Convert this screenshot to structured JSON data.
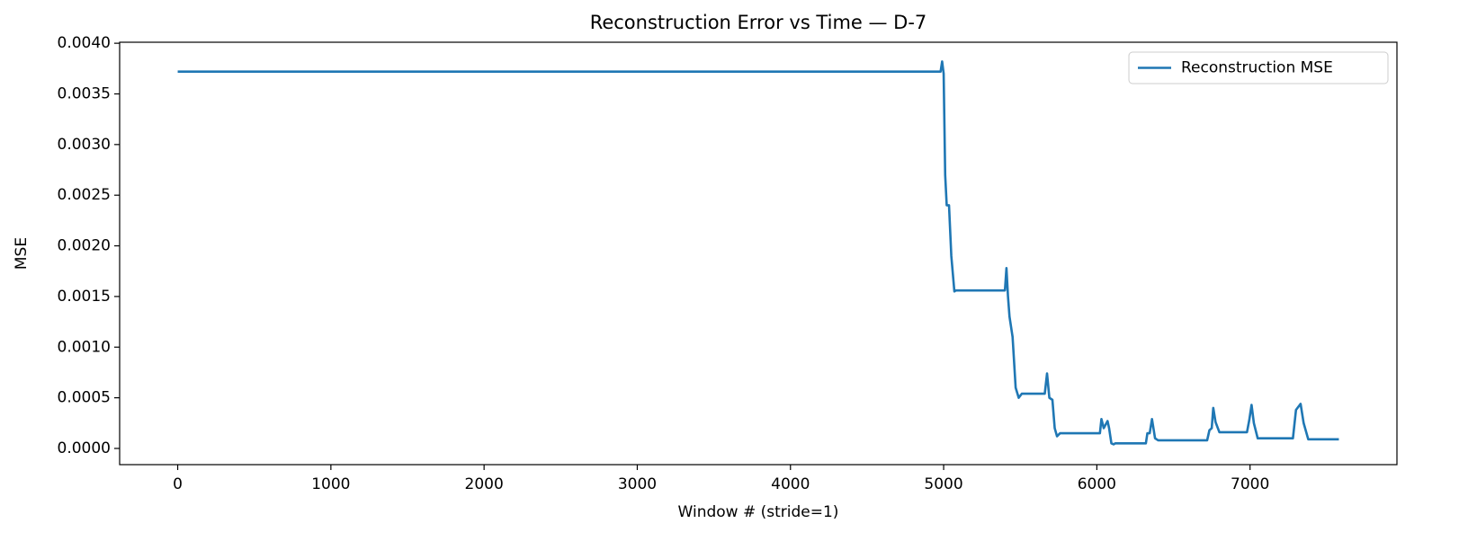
{
  "chart_data": {
    "type": "line",
    "title": "Reconstruction Error vs Time — D-7",
    "x_label": "Window # (stride=1)",
    "y_label": "MSE",
    "x": [
      0,
      4980,
      4990,
      5000,
      5010,
      5020,
      5035,
      5050,
      5070,
      5080,
      5400,
      5410,
      5420,
      5430,
      5450,
      5470,
      5490,
      5510,
      5660,
      5675,
      5690,
      5710,
      5725,
      5740,
      5760,
      6020,
      6030,
      6045,
      6070,
      6080,
      6095,
      6110,
      6120,
      6320,
      6330,
      6345,
      6360,
      6380,
      6400,
      6720,
      6735,
      6750,
      6760,
      6775,
      6800,
      6980,
      6995,
      7010,
      7025,
      7050,
      7280,
      7300,
      7330,
      7350,
      7380,
      7580
    ],
    "series": [
      {
        "name": "Reconstruction MSE",
        "color": "#1f77b4",
        "values": [
          0.00372,
          0.00372,
          0.00382,
          0.0037,
          0.0027,
          0.0024,
          0.0024,
          0.0019,
          0.00155,
          0.00156,
          0.00156,
          0.00178,
          0.0015,
          0.0013,
          0.0011,
          0.0006,
          0.0005,
          0.00054,
          0.00054,
          0.00074,
          0.0005,
          0.00048,
          0.0002,
          0.00012,
          0.00015,
          0.00015,
          0.00029,
          0.0002,
          0.00027,
          0.0002,
          5e-05,
          4e-05,
          5e-05,
          5e-05,
          0.00015,
          0.00015,
          0.00029,
          0.0001,
          8e-05,
          8e-05,
          0.00018,
          0.0002,
          0.0004,
          0.00026,
          0.00016,
          0.00016,
          0.00028,
          0.00043,
          0.00025,
          0.0001,
          0.0001,
          0.00038,
          0.00044,
          0.00025,
          9e-05,
          9e-05
        ]
      }
    ],
    "xlim": [
      -379,
      7959
    ],
    "xticks": [
      0,
      1000,
      2000,
      3000,
      4000,
      5000,
      6000,
      7000
    ],
    "ylim": [
      -0.00016,
      0.00401
    ],
    "yticks": [
      {
        "value": 0,
        "label": "0.0000"
      },
      {
        "value": 0.0005,
        "label": "0.0005"
      },
      {
        "value": 0.001,
        "label": "0.0010"
      },
      {
        "value": 0.0015,
        "label": "0.0015"
      },
      {
        "value": 0.002,
        "label": "0.0020"
      },
      {
        "value": 0.0025,
        "label": "0.0025"
      },
      {
        "value": 0.003,
        "label": "0.0030"
      },
      {
        "value": 0.0035,
        "label": "0.0035"
      },
      {
        "value": 0.004,
        "label": "0.0040"
      }
    ],
    "legend": "upper right"
  }
}
